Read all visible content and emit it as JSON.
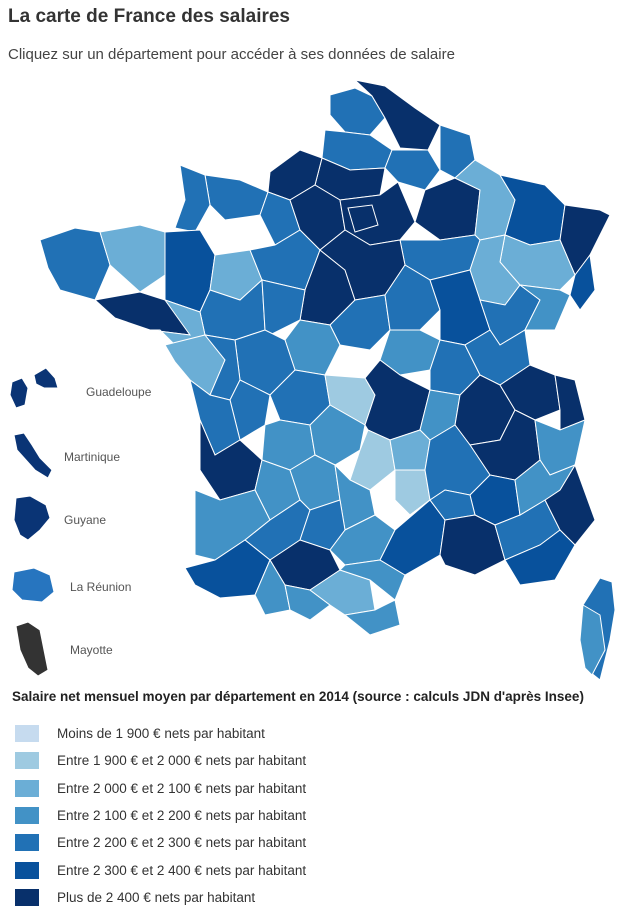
{
  "title": "La carte de France des salaires",
  "subtitle": "Cliquez sur un département pour accéder à ses données de salaire",
  "dom": [
    {
      "name": "Guadeloupe",
      "color": "#0a3475"
    },
    {
      "name": "Martinique",
      "color": "#0a3475"
    },
    {
      "name": "Guyane",
      "color": "#0a3475"
    },
    {
      "name": "La Réunion",
      "color": "#2775bf"
    },
    {
      "name": "Mayotte",
      "color": "#333333"
    }
  ],
  "legend": {
    "title": "Salaire net mensuel moyen par département en 2014 (source : calculs JDN d'après Insee)",
    "items": [
      {
        "label": "Moins de 1 900 € nets par habitant",
        "color": "#c6dbef"
      },
      {
        "label": "Entre 1 900 € et 2 000 € nets par habitant",
        "color": "#9ecae1"
      },
      {
        "label": "Entre 2 000 € et 2 100 € nets par habitant",
        "color": "#6baed6"
      },
      {
        "label": "Entre 2 100 € et 2 200 € nets par habitant",
        "color": "#4292c6"
      },
      {
        "label": "Entre 2 200 € et 2 300 € nets par habitant",
        "color": "#2171b5"
      },
      {
        "label": "Entre 2 300 € et 2 400 € nets par habitant",
        "color": "#08519c"
      },
      {
        "label": "Plus de 2 400 € nets par habitant",
        "color": "#08306b"
      }
    ]
  }
}
